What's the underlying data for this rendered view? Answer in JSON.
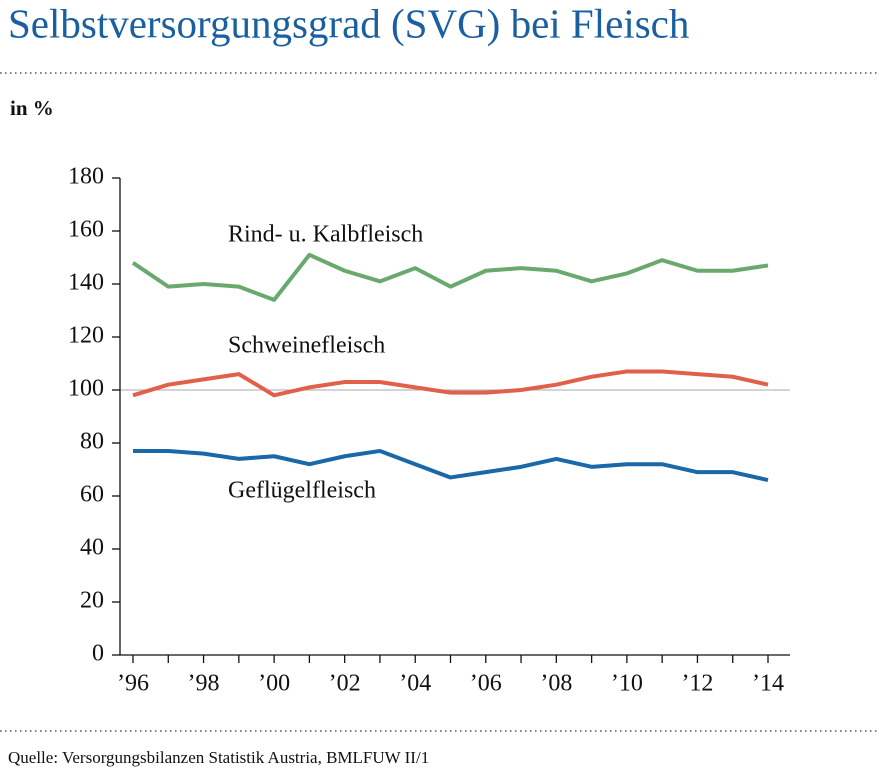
{
  "chart_data": {
    "type": "line",
    "title": "Selbstversorgungsgrad (SVG) bei Fleisch",
    "y_label": "in %",
    "source": "Quelle: Versorgungsbilanzen Statistik Austria, BMLFUW II/1",
    "categories": [
      "’96",
      null,
      "’98",
      null,
      "’00",
      null,
      "’02",
      null,
      "’04",
      null,
      "’06",
      null,
      "’08",
      null,
      "’10",
      null,
      "’12",
      null,
      "’14"
    ],
    "series": [
      {
        "name": "Rind- u. Kalbfleisch",
        "color": "#6aa96e",
        "values": [
          148,
          139,
          140,
          139,
          134,
          151,
          145,
          141,
          146,
          139,
          145,
          146,
          145,
          141,
          144,
          149,
          145,
          145,
          147
        ]
      },
      {
        "name": "Schweinefleisch",
        "color": "#e0604a",
        "values": [
          98,
          102,
          104,
          106,
          98,
          101,
          103,
          103,
          101,
          99,
          99,
          100,
          102,
          105,
          107,
          107,
          106,
          105,
          102
        ]
      },
      {
        "name": "Geflügelfleisch",
        "color": "#1a68a8",
        "values": [
          77,
          77,
          76,
          74,
          75,
          72,
          75,
          77,
          72,
          67,
          69,
          71,
          74,
          71,
          72,
          72,
          69,
          69,
          66
        ]
      }
    ],
    "ylim": [
      0,
      180
    ],
    "yticks": [
      0,
      20,
      40,
      60,
      80,
      100,
      120,
      140,
      160,
      180
    ],
    "reference_line": 100
  }
}
